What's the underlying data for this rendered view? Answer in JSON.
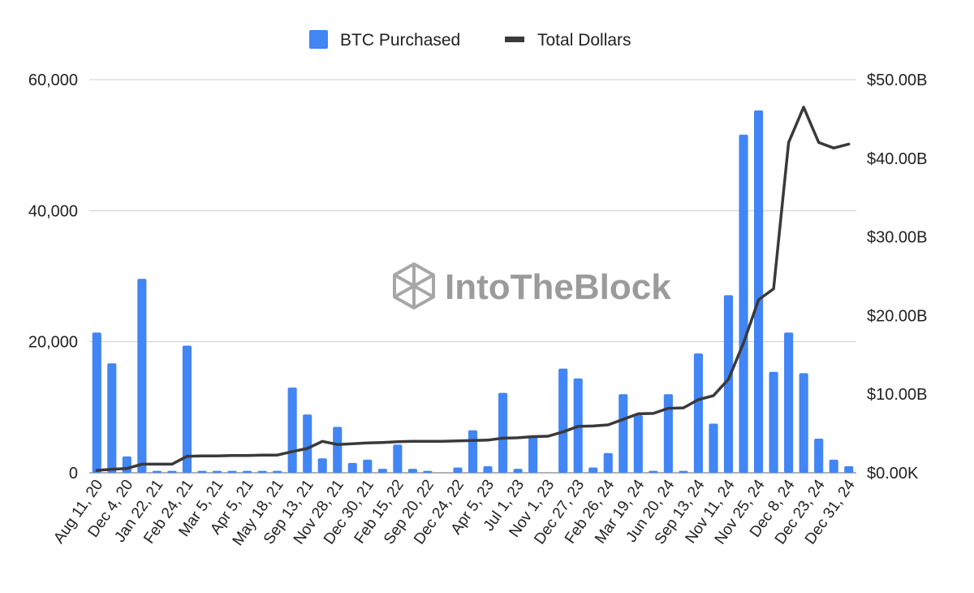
{
  "watermark": {
    "text": "IntoTheBlock",
    "icon": "cube-logo-icon"
  },
  "chart_data": {
    "type": "bar+line",
    "title": "",
    "xlabel": "",
    "ylabel_left": "",
    "ylabel_right": "",
    "legend": {
      "placement": "top-center",
      "entries": [
        "BTC Purchased",
        "Total Dollars"
      ]
    },
    "grid": true,
    "colors": {
      "bars": "#4285f4",
      "line": "#3a3a3a",
      "grid": "#cccccc"
    },
    "ylim_left": [
      0,
      60000
    ],
    "ylim_right": [
      0,
      50
    ],
    "left_ticks": [
      {
        "value": 0,
        "label": "0"
      },
      {
        "value": 20000,
        "label": "20,000"
      },
      {
        "value": 40000,
        "label": "40,000"
      },
      {
        "value": 60000,
        "label": "60,000"
      }
    ],
    "right_ticks": [
      {
        "value": 0,
        "label": "$0.00K"
      },
      {
        "value": 10,
        "label": "$10.00B"
      },
      {
        "value": 20,
        "label": "$20.00B"
      },
      {
        "value": 30,
        "label": "$30.00B"
      },
      {
        "value": 40,
        "label": "$40.00B"
      },
      {
        "value": 50,
        "label": "$50.00B"
      }
    ],
    "x_tick_labels": [
      {
        "index": 0,
        "label": "Aug 11, 20"
      },
      {
        "index": 3,
        "label": "Dec 4, 20"
      },
      {
        "index": 6,
        "label": "Jan 22, 21"
      },
      {
        "index": 9,
        "label": "Feb 24, 21"
      },
      {
        "index": 12,
        "label": "Mar 5, 21"
      },
      {
        "index": 15,
        "label": "Apr 5, 21"
      },
      {
        "index": 18,
        "label": "May 18, 21"
      },
      {
        "index": 21,
        "label": "Sep 13, 21"
      },
      {
        "index": 24,
        "label": "Nov 28, 21"
      },
      {
        "index": 27,
        "label": "Dec 30, 21"
      },
      {
        "index": 30,
        "label": "Feb 15, 22"
      },
      {
        "index": 33,
        "label": "Sep 20, 22"
      },
      {
        "index": 36,
        "label": "Dec 24, 22"
      },
      {
        "index": 39,
        "label": "Apr 5, 23"
      },
      {
        "index": 42,
        "label": "Jul 1, 23"
      },
      {
        "index": 45,
        "label": "Nov 1, 23"
      },
      {
        "index": 48,
        "label": "Dec 27, 23"
      },
      {
        "index": 51,
        "label": "Feb 26, 24"
      },
      {
        "index": 54,
        "label": "Mar 19, 24"
      },
      {
        "index": 57,
        "label": "Jun 20, 24"
      },
      {
        "index": 60,
        "label": "Sep 13, 24"
      },
      {
        "index": 63,
        "label": "Nov 11, 24"
      },
      {
        "index": 66,
        "label": "Nov 25, 24"
      },
      {
        "index": 69,
        "label": "Dec 8, 24"
      },
      {
        "index": 72,
        "label": "Dec 23, 24"
      },
      {
        "index": 75,
        "label": "Dec 31, 24"
      }
    ],
    "series": [
      {
        "name": "BTC Purchased",
        "type": "bar",
        "axis": "left",
        "values": [
          21400,
          16700,
          2500,
          29600,
          300,
          300,
          19400,
          300,
          300,
          300,
          300,
          300,
          300,
          13000,
          8900,
          2200,
          7000,
          1500,
          2000,
          600,
          4300,
          600,
          300,
          0,
          800,
          6500,
          1000,
          12200,
          600,
          5700,
          0,
          15900,
          14400,
          800,
          3000,
          12000,
          8800,
          300,
          12000,
          300,
          18200,
          7500,
          27100,
          51600,
          55300,
          15400,
          21400,
          15200,
          5200,
          2000,
          1000
        ]
      },
      {
        "name": "Total Dollars",
        "type": "line",
        "axis": "right",
        "unit": "billion USD",
        "values": [
          0.3,
          0.45,
          0.55,
          1.1,
          1.1,
          1.1,
          2.1,
          2.15,
          2.15,
          2.2,
          2.2,
          2.25,
          2.25,
          2.7,
          3.1,
          4.0,
          3.6,
          3.7,
          3.8,
          3.85,
          3.95,
          4.0,
          4.0,
          4.0,
          4.05,
          4.1,
          4.15,
          4.4,
          4.45,
          4.6,
          4.65,
          5.2,
          5.9,
          5.95,
          6.1,
          6.8,
          7.5,
          7.55,
          8.2,
          8.25,
          9.3,
          9.8,
          11.9,
          16.5,
          22.0,
          23.4,
          42.0,
          46.5,
          42.0,
          41.3,
          41.8
        ]
      }
    ]
  }
}
